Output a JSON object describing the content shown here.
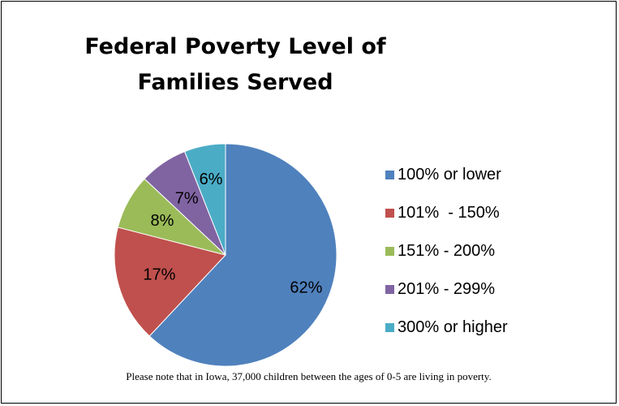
{
  "chart_data": {
    "type": "pie",
    "title": "Federal Poverty Level of Families Served",
    "categories": [
      "100% or lower",
      "101%  - 150%",
      "151% - 200%",
      "201% - 299%",
      "300% or higher"
    ],
    "values": [
      62,
      17,
      8,
      7,
      6
    ],
    "data_labels": [
      "62%",
      "17%",
      "8%",
      "7%",
      "6%"
    ],
    "colors": [
      "#4F81BD",
      "#C0504D",
      "#9BBB59",
      "#8064A2",
      "#4BACC6"
    ],
    "legend_position": "right",
    "start_angle": "12 o'clock",
    "direction": "clockwise"
  },
  "note": "Please note that in Iowa, 37,000 children between the ages of 0-5 are living in poverty."
}
